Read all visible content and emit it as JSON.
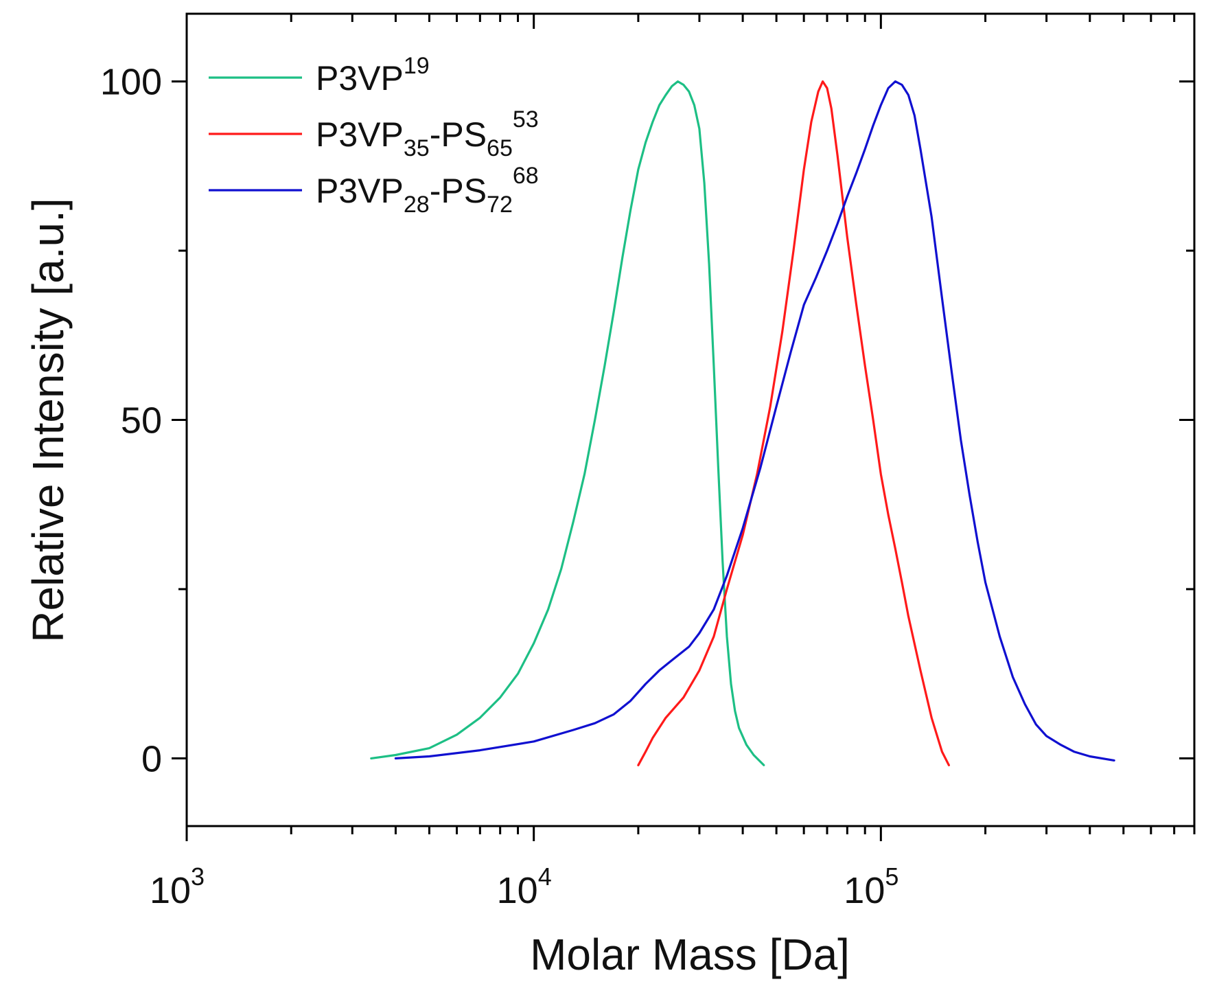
{
  "chart_data": {
    "type": "line",
    "title": "",
    "xlabel": "Molar Mass [Da]",
    "ylabel": "Relative Intensity [a.u.]",
    "xscale": "log",
    "xlim": [
      1000,
      800000
    ],
    "ylim": [
      -10,
      110
    ],
    "grid": false,
    "legend_position": "top-left",
    "x_ticks": [
      {
        "value": 1000,
        "base": "10",
        "exp": "3"
      },
      {
        "value": 10000,
        "base": "10",
        "exp": "4"
      },
      {
        "value": 100000,
        "base": "10",
        "exp": "5"
      }
    ],
    "y_ticks": [
      {
        "value": 0,
        "label": "0"
      },
      {
        "value": 50,
        "label": "50"
      },
      {
        "value": 100,
        "label": "100"
      }
    ],
    "y_minor_ticks": [
      25,
      75
    ],
    "series": [
      {
        "name": "P3VP19",
        "legend": {
          "base": "P3VP",
          "sub1": "",
          "mid": "",
          "sub2": "",
          "sup": "19"
        },
        "color": "#1dbf85",
        "points": [
          [
            3400,
            0
          ],
          [
            4000,
            0.5
          ],
          [
            5000,
            1.5
          ],
          [
            6000,
            3.5
          ],
          [
            7000,
            6
          ],
          [
            8000,
            9
          ],
          [
            9000,
            12.5
          ],
          [
            10000,
            17
          ],
          [
            11000,
            22
          ],
          [
            12000,
            28
          ],
          [
            13000,
            35
          ],
          [
            14000,
            42
          ],
          [
            15000,
            50
          ],
          [
            16000,
            58
          ],
          [
            17000,
            66
          ],
          [
            18000,
            74
          ],
          [
            19000,
            81
          ],
          [
            20000,
            87
          ],
          [
            21000,
            91
          ],
          [
            22000,
            94
          ],
          [
            23000,
            96.5
          ],
          [
            24000,
            98
          ],
          [
            25000,
            99.3
          ],
          [
            26000,
            100
          ],
          [
            27000,
            99.5
          ],
          [
            28000,
            98.5
          ],
          [
            29000,
            96.5
          ],
          [
            30000,
            93
          ],
          [
            31000,
            85
          ],
          [
            32000,
            73
          ],
          [
            33000,
            58
          ],
          [
            34000,
            43
          ],
          [
            35000,
            29
          ],
          [
            36000,
            18
          ],
          [
            37000,
            11
          ],
          [
            38000,
            7
          ],
          [
            39000,
            4.5
          ],
          [
            41000,
            2
          ],
          [
            43000,
            0.5
          ],
          [
            46000,
            -1
          ]
        ]
      },
      {
        "name": "P3VP35-PS65 53",
        "legend": {
          "base": "P3VP",
          "sub1": "35",
          "mid": "-PS",
          "sub2": "65",
          "sup": "53"
        },
        "color": "#ff1a1a",
        "points": [
          [
            20000,
            -1
          ],
          [
            21000,
            1
          ],
          [
            22000,
            3
          ],
          [
            24000,
            6
          ],
          [
            27000,
            9
          ],
          [
            30000,
            13
          ],
          [
            33000,
            18
          ],
          [
            36000,
            25
          ],
          [
            40000,
            33
          ],
          [
            44000,
            42
          ],
          [
            48000,
            52
          ],
          [
            52000,
            63
          ],
          [
            56000,
            75
          ],
          [
            60000,
            87
          ],
          [
            63000,
            94
          ],
          [
            66000,
            98.5
          ],
          [
            68000,
            100
          ],
          [
            70000,
            99
          ],
          [
            72000,
            96
          ],
          [
            75000,
            89
          ],
          [
            80000,
            77
          ],
          [
            85000,
            67
          ],
          [
            90000,
            58
          ],
          [
            95000,
            50
          ],
          [
            100000,
            42
          ],
          [
            105000,
            36
          ],
          [
            110000,
            31
          ],
          [
            115000,
            26
          ],
          [
            120000,
            21
          ],
          [
            130000,
            13
          ],
          [
            140000,
            6
          ],
          [
            150000,
            1
          ],
          [
            157000,
            -1
          ]
        ]
      },
      {
        "name": "P3VP28-PS72 68",
        "legend": {
          "base": "P3VP",
          "sub1": "28",
          "mid": "-PS",
          "sub2": "72",
          "sup": "68"
        },
        "color": "#1010d0",
        "points": [
          [
            4000,
            0
          ],
          [
            5000,
            0.3
          ],
          [
            7000,
            1.2
          ],
          [
            10000,
            2.5
          ],
          [
            13000,
            4.2
          ],
          [
            15000,
            5.2
          ],
          [
            17000,
            6.5
          ],
          [
            19000,
            8.5
          ],
          [
            21000,
            11
          ],
          [
            23000,
            13
          ],
          [
            25000,
            14.5
          ],
          [
            28000,
            16.5
          ],
          [
            30000,
            18.5
          ],
          [
            33000,
            22
          ],
          [
            36000,
            27
          ],
          [
            40000,
            34
          ],
          [
            45000,
            43
          ],
          [
            50000,
            52
          ],
          [
            55000,
            60
          ],
          [
            60000,
            67
          ],
          [
            65000,
            71
          ],
          [
            70000,
            75
          ],
          [
            75000,
            79
          ],
          [
            80000,
            83
          ],
          [
            85000,
            86.5
          ],
          [
            90000,
            90
          ],
          [
            95000,
            93.5
          ],
          [
            100000,
            96.5
          ],
          [
            105000,
            99
          ],
          [
            110000,
            100
          ],
          [
            115000,
            99.5
          ],
          [
            120000,
            98
          ],
          [
            125000,
            95
          ],
          [
            130000,
            90
          ],
          [
            140000,
            80
          ],
          [
            150000,
            68
          ],
          [
            160000,
            57
          ],
          [
            170000,
            47
          ],
          [
            180000,
            39
          ],
          [
            190000,
            32
          ],
          [
            200000,
            26
          ],
          [
            220000,
            18
          ],
          [
            240000,
            12
          ],
          [
            260000,
            8
          ],
          [
            280000,
            5
          ],
          [
            300000,
            3.3
          ],
          [
            330000,
            2
          ],
          [
            360000,
            1
          ],
          [
            400000,
            0.3
          ],
          [
            470000,
            -0.3
          ]
        ]
      }
    ]
  }
}
